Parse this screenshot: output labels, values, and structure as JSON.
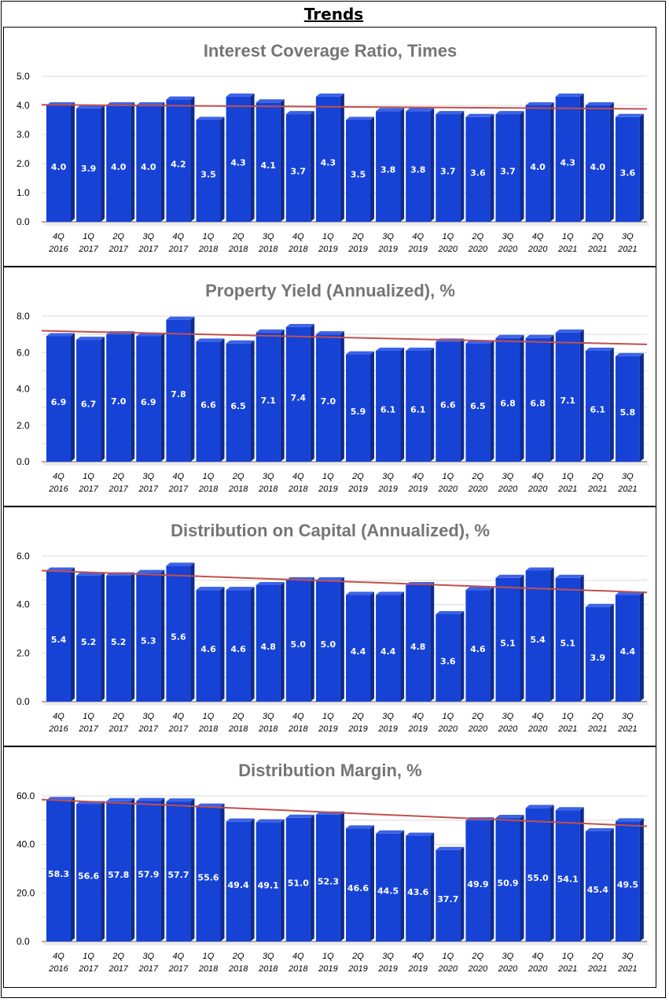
{
  "page_title": "Trends",
  "colors": {
    "bar_front": "#1642D6",
    "bar_side": "#0E2A8E",
    "bar_top": "#3C63E6",
    "trendline": "#C0504D",
    "grid": "#DADADA",
    "title": "#757575"
  },
  "chart_data": [
    {
      "type": "bar",
      "title": "Interest Coverage Ratio, Times",
      "categories": [
        [
          "4Q",
          "2016"
        ],
        [
          "1Q",
          "2017"
        ],
        [
          "2Q",
          "2017"
        ],
        [
          "3Q",
          "2017"
        ],
        [
          "4Q",
          "2017"
        ],
        [
          "1Q",
          "2018"
        ],
        [
          "2Q",
          "2018"
        ],
        [
          "3Q",
          "2018"
        ],
        [
          "4Q",
          "2018"
        ],
        [
          "1Q",
          "2019"
        ],
        [
          "2Q",
          "2019"
        ],
        [
          "3Q",
          "2019"
        ],
        [
          "4Q",
          "2019"
        ],
        [
          "1Q",
          "2020"
        ],
        [
          "2Q",
          "2020"
        ],
        [
          "3Q",
          "2020"
        ],
        [
          "4Q",
          "2020"
        ],
        [
          "1Q",
          "2021"
        ],
        [
          "2Q",
          "2021"
        ],
        [
          "3Q",
          "2021"
        ]
      ],
      "values": [
        4.0,
        3.9,
        4.0,
        4.0,
        4.2,
        3.5,
        4.3,
        4.1,
        3.7,
        4.3,
        3.5,
        3.8,
        3.8,
        3.7,
        3.6,
        3.7,
        4.0,
        4.3,
        4.0,
        3.6
      ],
      "data_labels": [
        "4.0",
        "3.9",
        "4.0",
        "4.0",
        "4.2",
        "3.5",
        "4.3",
        "4.1",
        "3.7",
        "4.3",
        "3.5",
        "3.8",
        "3.8",
        "3.7",
        "3.6",
        "3.7",
        "4.0",
        "4.3",
        "4.0",
        "3.6"
      ],
      "yticks": [
        0,
        1,
        2,
        3,
        4,
        5
      ],
      "ytick_labels": [
        "0.0",
        "1.0",
        "2.0",
        "3.0",
        "4.0",
        "5.0"
      ],
      "ylim": [
        0,
        5
      ],
      "minor_per_major": 1,
      "trendline": [
        4.02,
        3.88
      ]
    },
    {
      "type": "bar",
      "title": "Property Yield (Annualized), %",
      "categories": [
        [
          "4Q",
          "2016"
        ],
        [
          "1Q",
          "2017"
        ],
        [
          "2Q",
          "2017"
        ],
        [
          "3Q",
          "2017"
        ],
        [
          "4Q",
          "2017"
        ],
        [
          "1Q",
          "2018"
        ],
        [
          "2Q",
          "2018"
        ],
        [
          "3Q",
          "2018"
        ],
        [
          "4Q",
          "2018"
        ],
        [
          "1Q",
          "2019"
        ],
        [
          "2Q",
          "2019"
        ],
        [
          "3Q",
          "2019"
        ],
        [
          "4Q",
          "2019"
        ],
        [
          "1Q",
          "2020"
        ],
        [
          "2Q",
          "2020"
        ],
        [
          "3Q",
          "2020"
        ],
        [
          "4Q",
          "2020"
        ],
        [
          "1Q",
          "2021"
        ],
        [
          "2Q",
          "2021"
        ],
        [
          "3Q",
          "2021"
        ]
      ],
      "values": [
        6.9,
        6.7,
        7.0,
        6.9,
        7.8,
        6.6,
        6.5,
        7.1,
        7.4,
        7.0,
        5.9,
        6.1,
        6.1,
        6.6,
        6.5,
        6.8,
        6.8,
        7.1,
        6.1,
        5.8
      ],
      "data_labels": [
        "6.9",
        "6.7",
        "7.0",
        "6.9",
        "7.8",
        "6.6",
        "6.5",
        "7.1",
        "7.4",
        "7.0",
        "5.9",
        "6.1",
        "6.1",
        "6.6",
        "6.5",
        "6.8",
        "6.8",
        "7.1",
        "6.1",
        "5.8"
      ],
      "yticks": [
        0,
        2,
        4,
        6,
        8
      ],
      "ytick_labels": [
        "0.0",
        "2.0",
        "4.0",
        "6.0",
        "8.0"
      ],
      "ylim": [
        0,
        8
      ],
      "minor_per_major": 2,
      "trendline": [
        7.2,
        6.45
      ]
    },
    {
      "type": "bar",
      "title": "Distribution on Capital (Annualized), %",
      "categories": [
        [
          "4Q",
          "2016"
        ],
        [
          "1Q",
          "2017"
        ],
        [
          "2Q",
          "2017"
        ],
        [
          "3Q",
          "2017"
        ],
        [
          "4Q",
          "2017"
        ],
        [
          "1Q",
          "2018"
        ],
        [
          "2Q",
          "2018"
        ],
        [
          "3Q",
          "2018"
        ],
        [
          "4Q",
          "2018"
        ],
        [
          "1Q",
          "2019"
        ],
        [
          "2Q",
          "2019"
        ],
        [
          "3Q",
          "2019"
        ],
        [
          "4Q",
          "2019"
        ],
        [
          "1Q",
          "2020"
        ],
        [
          "2Q",
          "2020"
        ],
        [
          "3Q",
          "2020"
        ],
        [
          "4Q",
          "2020"
        ],
        [
          "1Q",
          "2021"
        ],
        [
          "2Q",
          "2021"
        ],
        [
          "3Q",
          "2021"
        ]
      ],
      "values": [
        5.4,
        5.2,
        5.2,
        5.3,
        5.6,
        4.6,
        4.6,
        4.8,
        5.0,
        5.0,
        4.4,
        4.4,
        4.8,
        3.6,
        4.6,
        5.1,
        5.4,
        5.1,
        3.9,
        4.4
      ],
      "data_labels": [
        "5.4",
        "5.2",
        "5.2",
        "5.3",
        "5.6",
        "4.6",
        "4.6",
        "4.8",
        "5.0",
        "5.0",
        "4.4",
        "4.4",
        "4.8",
        "3.6",
        "4.6",
        "5.1",
        "5.4",
        "5.1",
        "3.9",
        "4.4"
      ],
      "yticks": [
        0,
        2,
        4,
        6
      ],
      "ytick_labels": [
        "0.0",
        "2.0",
        "4.0",
        "6.0"
      ],
      "ylim": [
        0,
        6
      ],
      "minor_per_major": 2,
      "trendline": [
        5.4,
        4.5
      ]
    },
    {
      "type": "bar",
      "title": "Distribution Margin, %",
      "categories": [
        [
          "4Q",
          "2016"
        ],
        [
          "1Q",
          "2017"
        ],
        [
          "2Q",
          "2017"
        ],
        [
          "3Q",
          "2017"
        ],
        [
          "4Q",
          "2017"
        ],
        [
          "1Q",
          "2018"
        ],
        [
          "2Q",
          "2018"
        ],
        [
          "3Q",
          "2018"
        ],
        [
          "4Q",
          "2018"
        ],
        [
          "1Q",
          "2019"
        ],
        [
          "2Q",
          "2019"
        ],
        [
          "3Q",
          "2019"
        ],
        [
          "4Q",
          "2019"
        ],
        [
          "1Q",
          "2020"
        ],
        [
          "2Q",
          "2020"
        ],
        [
          "3Q",
          "2020"
        ],
        [
          "4Q",
          "2020"
        ],
        [
          "1Q",
          "2021"
        ],
        [
          "2Q",
          "2021"
        ],
        [
          "3Q",
          "2021"
        ]
      ],
      "values": [
        58.3,
        56.6,
        57.8,
        57.9,
        57.7,
        55.6,
        49.4,
        49.1,
        51.0,
        52.3,
        46.6,
        44.5,
        43.6,
        37.7,
        49.9,
        50.9,
        55.0,
        54.1,
        45.4,
        49.5
      ],
      "data_labels": [
        "58.3",
        "56.6",
        "57.8",
        "57.9",
        "57.7",
        "55.6",
        "49.4",
        "49.1",
        "51.0",
        "52.3",
        "46.6",
        "44.5",
        "43.6",
        "37.7",
        "49.9",
        "50.9",
        "55.0",
        "54.1",
        "45.4",
        "49.5"
      ],
      "yticks": [
        0,
        20,
        40,
        60
      ],
      "ytick_labels": [
        "0.0",
        "20.0",
        "40.0",
        "60.0"
      ],
      "ylim": [
        0,
        60
      ],
      "minor_per_major": 2,
      "trendline": [
        58.5,
        47.5
      ]
    }
  ]
}
